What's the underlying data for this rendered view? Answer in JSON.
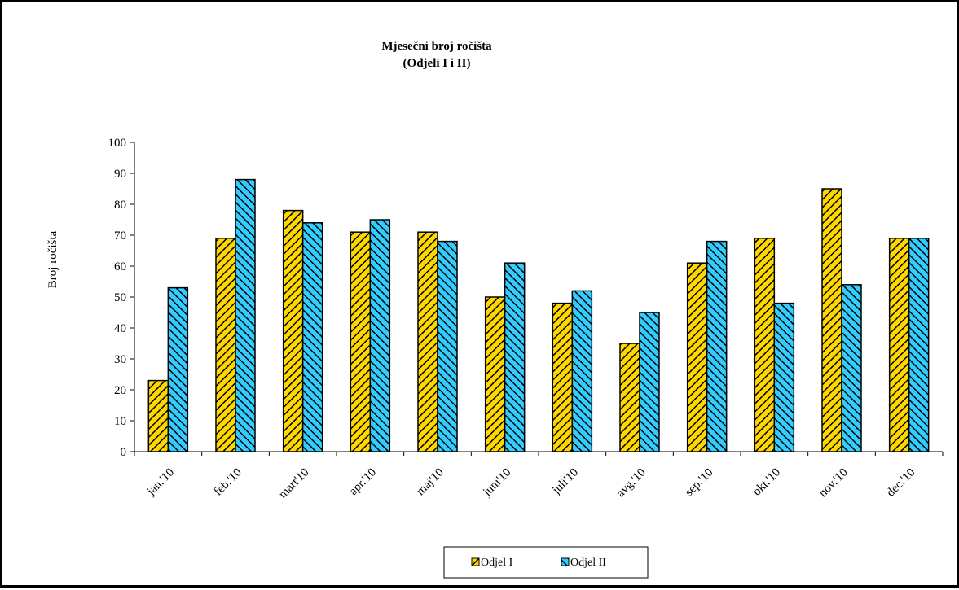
{
  "chart_data": {
    "type": "bar",
    "title": "Mjesečni broj ročišta",
    "subtitle": "(Odjeli I i II)",
    "ylabel": "Broj ročišta",
    "xlabel": "",
    "ylim": [
      0,
      100
    ],
    "yticks": [
      0,
      10,
      20,
      30,
      40,
      50,
      60,
      70,
      80,
      90,
      100
    ],
    "categories": [
      "jan.'10",
      "feb.'10",
      "mart'10",
      "apr.'10",
      "maj'10",
      "juni'10",
      "juli'10",
      "avg.'10",
      "sep.'10",
      "okt.'10",
      "nov.'10",
      "dec.'10"
    ],
    "series": [
      {
        "name": "Odjel I",
        "values": [
          23,
          69,
          78,
          71,
          71,
          50,
          48,
          35,
          61,
          69,
          85,
          69
        ],
        "color": "#FFD700",
        "hatch": "#000000",
        "pattern": "diagonal-down"
      },
      {
        "name": "Odjel II",
        "values": [
          53,
          88,
          74,
          75,
          68,
          61,
          52,
          45,
          68,
          48,
          54,
          69
        ],
        "color": "#33CCFF",
        "hatch": "#000000",
        "pattern": "diagonal-up"
      }
    ],
    "grid": false,
    "legend_position": "bottom"
  }
}
